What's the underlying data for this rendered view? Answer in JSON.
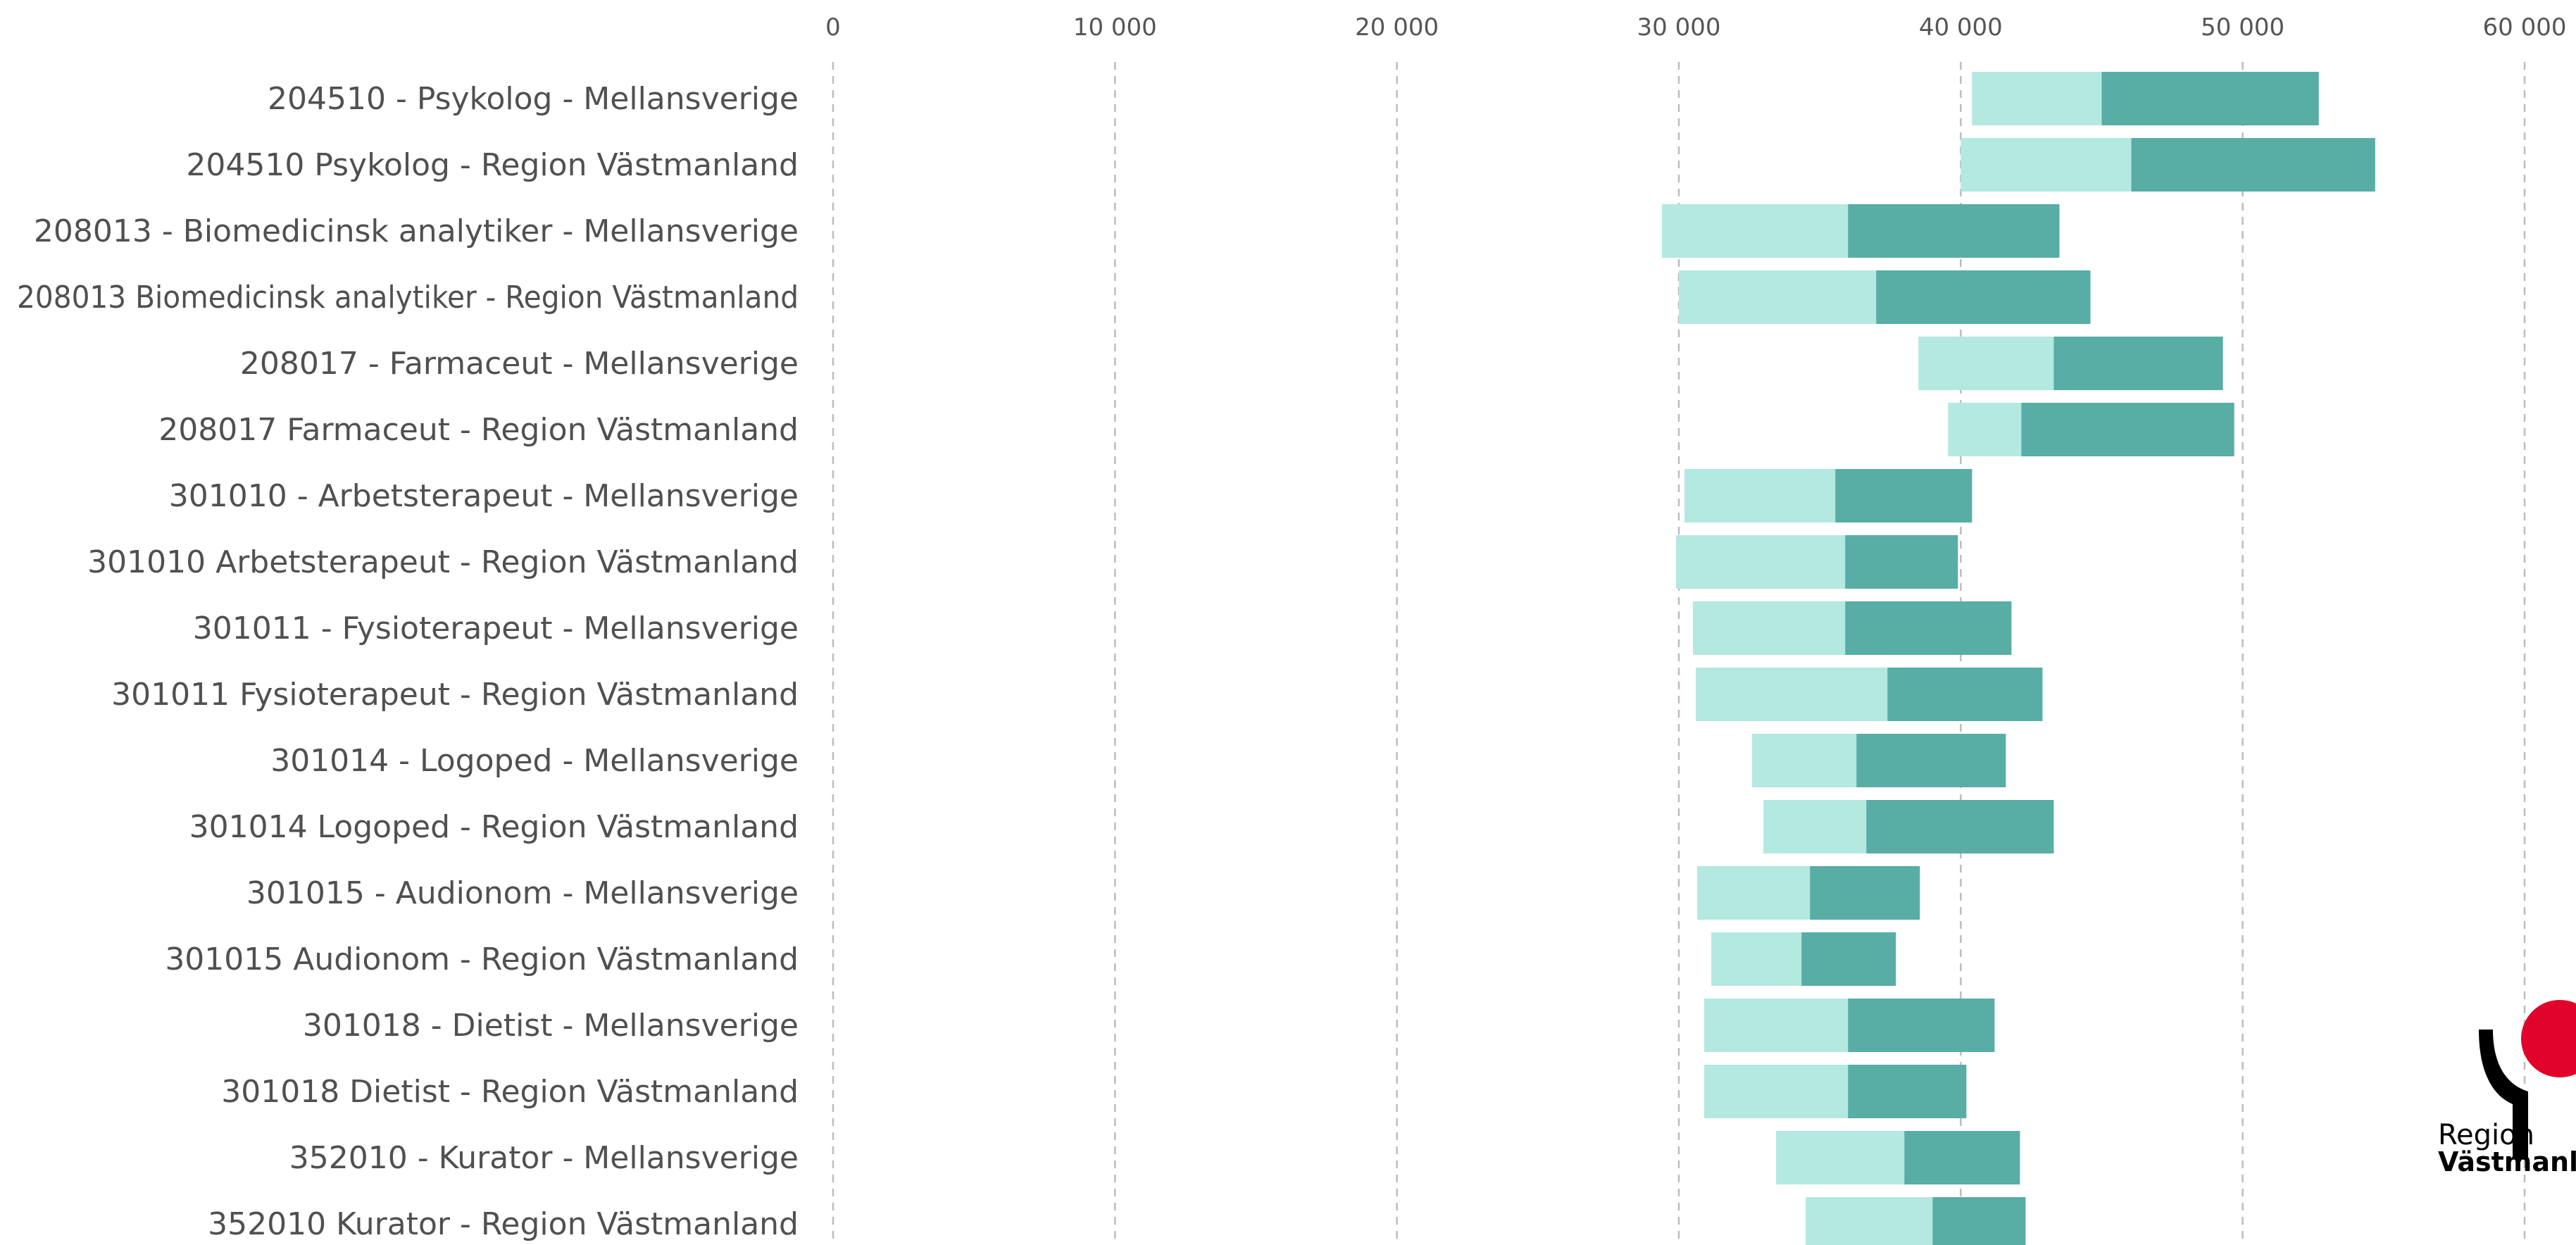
{
  "chart_data": {
    "type": "bar",
    "orientation": "horizontal",
    "stacked": true,
    "title": "",
    "xlabel": "",
    "ylabel": "",
    "xlim": [
      0,
      60000
    ],
    "x_ticks": [
      0,
      10000,
      20000,
      30000,
      40000,
      50000,
      60000
    ],
    "x_tick_labels": [
      "0",
      "10 000",
      "20 000",
      "30 000",
      "40 000",
      "50 000",
      "60 000"
    ],
    "grid": true,
    "legend": "none",
    "categories": [
      "204510 - Psykolog - Mellansverige",
      "204510 Psykolog - Region Västmanland",
      "208013 - Biomedicinsk analytiker - Mellansverige",
      "208013 Biomedicinsk analytiker - Region Västmanland",
      "208017 - Farmaceut - Mellansverige",
      "208017 Farmaceut - Region Västmanland",
      "301010 - Arbetsterapeut - Mellansverige",
      "301010 Arbetsterapeut - Region Västmanland",
      "301011 - Fysioterapeut - Mellansverige",
      "301011 Fysioterapeut - Region Västmanland",
      "301014 - Logoped - Mellansverige",
      "301014 Logoped - Region Västmanland",
      "301015 - Audionom - Mellansverige",
      "301015 Audionom - Region Västmanland",
      "301018 - Dietist - Mellansverige",
      "301018 Dietist - Region Västmanland",
      "352010 - Kurator - Mellansverige",
      "352010 Kurator - Region Västmanland"
    ],
    "series": [
      {
        "color": "#b3e9e0",
        "start": [
          40400,
          40000,
          29400,
          30000,
          38500,
          39550,
          30200,
          29900,
          30500,
          30600,
          32600,
          33000,
          30650,
          31150,
          30900,
          30900,
          33450,
          34500
        ],
        "end": [
          45000,
          46050,
          36000,
          37000,
          43300,
          42150,
          35550,
          35900,
          35900,
          37400,
          36300,
          36650,
          34650,
          34350,
          36000,
          36000,
          38000,
          39000
        ]
      },
      {
        "color": "#58ada5",
        "start": [
          45000,
          46050,
          36000,
          37000,
          43300,
          42150,
          35550,
          35900,
          35900,
          37400,
          36300,
          36650,
          34650,
          34350,
          36000,
          36000,
          38000,
          39000
        ],
        "end": [
          52700,
          54700,
          43500,
          44600,
          49300,
          49700,
          40400,
          39900,
          41800,
          42900,
          41600,
          43300,
          38550,
          37700,
          41200,
          40200,
          42100,
          42300
        ]
      }
    ]
  },
  "logo": {
    "line1": "Region",
    "line2": "Västmanland",
    "colors": {
      "dot": "#e2032b",
      "figure": "#000000"
    }
  }
}
